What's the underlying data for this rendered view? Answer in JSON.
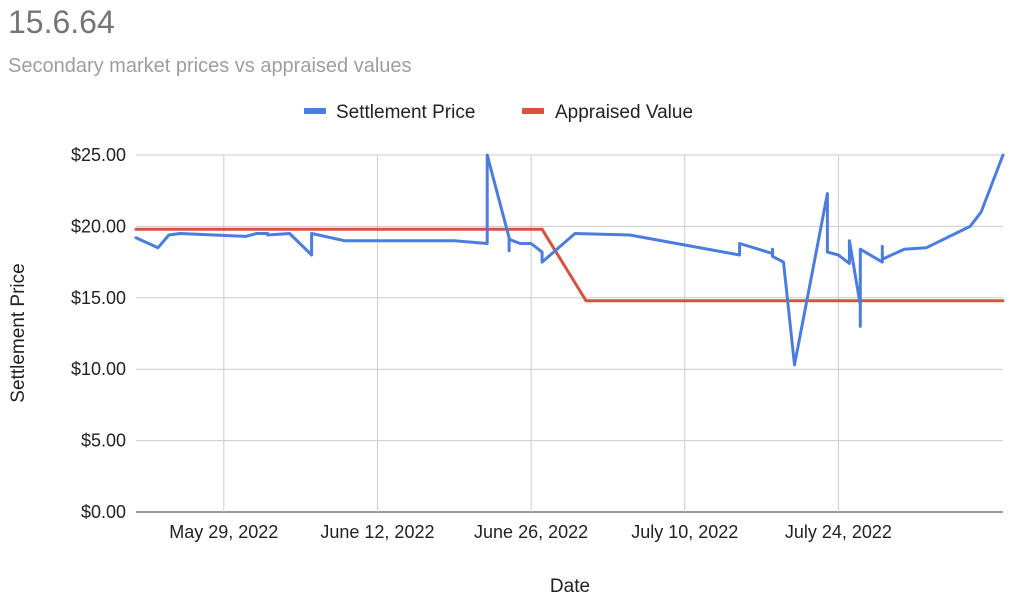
{
  "chart_data": {
    "type": "line",
    "title": "15.6.64",
    "subtitle": "Secondary market prices vs appraised values",
    "xlabel": "Date",
    "ylabel": "Settlement Price",
    "ylim": [
      0,
      25
    ],
    "x_range": [
      "2022-05-21",
      "2022-08-08"
    ],
    "ytick_labels": [
      "$0.00",
      "$5.00",
      "$10.00",
      "$15.00",
      "$20.00",
      "$25.00"
    ],
    "ytick_values": [
      0,
      5,
      10,
      15,
      20,
      25
    ],
    "xtick_labels": [
      "May 29, 2022",
      "June 12, 2022",
      "June 26, 2022",
      "July 10, 2022",
      "July 24, 2022"
    ],
    "xtick_dates": [
      "2022-05-29",
      "2022-06-12",
      "2022-06-26",
      "2022-07-10",
      "2022-07-24"
    ],
    "legend_position": "top-center",
    "series": [
      {
        "name": "Settlement Price",
        "color": "#4a7de0",
        "points": [
          [
            "2022-05-21",
            19.2
          ],
          [
            "2022-05-23",
            18.5
          ],
          [
            "2022-05-24",
            19.4
          ],
          [
            "2022-05-25",
            19.5
          ],
          [
            "2022-05-31",
            19.3
          ],
          [
            "2022-06-01",
            19.5
          ],
          [
            "2022-06-02",
            19.5
          ],
          [
            "2022-06-02",
            19.4
          ],
          [
            "2022-06-04",
            19.5
          ],
          [
            "2022-06-06",
            18.0
          ],
          [
            "2022-06-06",
            19.5
          ],
          [
            "2022-06-09",
            19.0
          ],
          [
            "2022-06-19",
            19.0
          ],
          [
            "2022-06-22",
            18.8
          ],
          [
            "2022-06-22",
            25.0
          ],
          [
            "2022-06-24",
            19.2
          ],
          [
            "2022-06-24",
            18.3
          ],
          [
            "2022-06-24",
            19.1
          ],
          [
            "2022-06-25",
            18.8
          ],
          [
            "2022-06-26",
            18.8
          ],
          [
            "2022-06-27",
            18.2
          ],
          [
            "2022-06-27",
            17.5
          ],
          [
            "2022-06-30",
            19.5
          ],
          [
            "2022-07-05",
            19.4
          ],
          [
            "2022-07-15",
            18.0
          ],
          [
            "2022-07-15",
            18.8
          ],
          [
            "2022-07-18",
            18.1
          ],
          [
            "2022-07-18",
            18.4
          ],
          [
            "2022-07-18",
            17.9
          ],
          [
            "2022-07-19",
            17.5
          ],
          [
            "2022-07-20",
            10.3
          ],
          [
            "2022-07-23",
            22.3
          ],
          [
            "2022-07-23",
            18.2
          ],
          [
            "2022-07-24",
            18.0
          ],
          [
            "2022-07-25",
            17.4
          ],
          [
            "2022-07-25",
            19.0
          ],
          [
            "2022-07-26",
            14.5
          ],
          [
            "2022-07-26",
            13.0
          ],
          [
            "2022-07-26",
            18.4
          ],
          [
            "2022-07-28",
            17.5
          ],
          [
            "2022-07-28",
            18.6
          ],
          [
            "2022-07-28",
            17.7
          ],
          [
            "2022-07-30",
            18.4
          ],
          [
            "2022-08-01",
            18.5
          ],
          [
            "2022-08-05",
            20.0
          ],
          [
            "2022-08-06",
            21.0
          ],
          [
            "2022-08-08",
            25.0
          ]
        ]
      },
      {
        "name": "Appraised Value",
        "color": "#d9503f",
        "points": [
          [
            "2022-05-21",
            19.8
          ],
          [
            "2022-06-27",
            19.8
          ],
          [
            "2022-07-01",
            14.8
          ],
          [
            "2022-08-08",
            14.8
          ]
        ]
      }
    ]
  }
}
